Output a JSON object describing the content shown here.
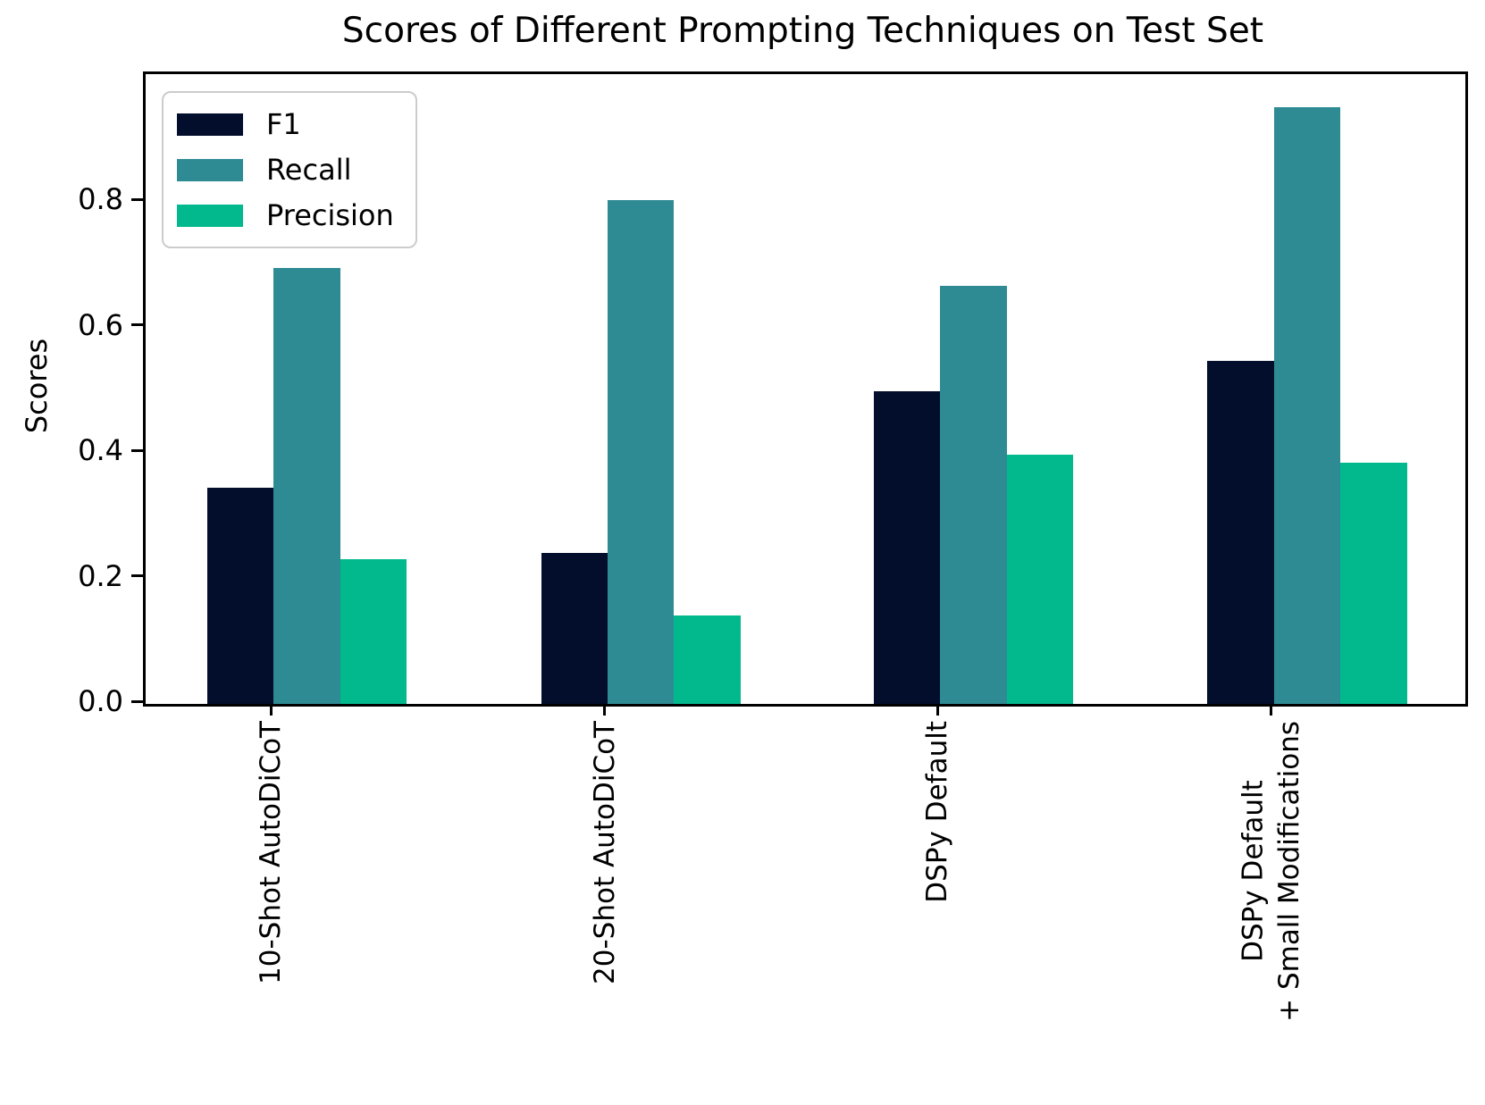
{
  "chart_data": {
    "type": "bar",
    "title": "Scores of Different Prompting Techniques on Test Set",
    "ylabel": "Scores",
    "xlabel": "",
    "categories": [
      "10-Shot AutoDiCoT",
      "20-Shot AutoDiCoT",
      "DSPy Default",
      "DSPy Default\n+ Small Modifications"
    ],
    "series": [
      {
        "name": "F1",
        "color": "#030e2c",
        "values": [
          0.345,
          0.24,
          0.498,
          0.547
        ]
      },
      {
        "name": "Recall",
        "color": "#2e8b94",
        "values": [
          0.695,
          0.803,
          0.666,
          0.952
        ]
      },
      {
        "name": "Precision",
        "color": "#01b98d",
        "values": [
          0.231,
          0.141,
          0.397,
          0.384
        ]
      }
    ],
    "yticks": [
      "0.0",
      "0.2",
      "0.4",
      "0.6",
      "0.8"
    ],
    "ylim": [
      0,
      1.004
    ],
    "grid": false,
    "legend_position": "upper left",
    "axis_color": "#000000"
  }
}
